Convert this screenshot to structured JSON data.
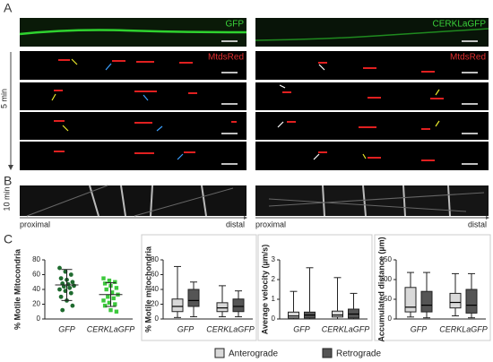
{
  "panels": {
    "A": {
      "label": "A",
      "left_channel": "GFP",
      "right_channel": "CERKLaGFP",
      "left_red": "MtdsRed",
      "right_red": "MtdsRed",
      "time": "5 min"
    },
    "B": {
      "label": "B",
      "time": "10 min",
      "left_start": "proximal",
      "left_end": "distal",
      "right_start": "proximal",
      "right_end": "distal"
    },
    "C": {
      "label": "C"
    }
  },
  "chart_data": [
    {
      "type": "scatter",
      "ylabel": "% Motile Mitocondria",
      "categories": [
        "GFP",
        "CERKLaGFP"
      ],
      "series": [
        {
          "color": "#1f6b2f",
          "marker": "circle",
          "values": [
            69,
            64,
            60,
            55,
            53,
            50,
            48,
            47,
            45,
            44,
            42,
            40,
            38,
            35,
            30,
            25,
            18,
            12
          ],
          "mean": 46,
          "sd": 21
        },
        {
          "color": "#3cc83c",
          "marker": "square",
          "values": [
            55,
            52,
            50,
            48,
            45,
            42,
            40,
            36,
            33,
            30,
            28,
            25,
            22,
            20,
            18,
            12,
            10
          ],
          "mean": 33,
          "sd": 16
        }
      ],
      "ylim": [
        0,
        80
      ],
      "yticks": [
        0,
        20,
        40,
        60,
        80
      ]
    },
    {
      "type": "box",
      "ylabel": "% Motile mitochondria",
      "categories": [
        "GFP",
        "CERKLaGFP"
      ],
      "series": [
        {
          "name": "Anterograde",
          "color": "#d9d9d9",
          "values": [
            {
              "min": 2,
              "q1": 10,
              "median": 17,
              "q3": 27,
              "max": 71
            },
            {
              "min": 3,
              "q1": 10,
              "median": 15,
              "q3": 22,
              "max": 45
            }
          ]
        },
        {
          "name": "Retrograde",
          "color": "#555555",
          "values": [
            {
              "min": 3,
              "q1": 17,
              "median": 25,
              "q3": 40,
              "max": 50
            },
            {
              "min": 3,
              "q1": 10,
              "median": 17,
              "q3": 27,
              "max": 38
            }
          ]
        }
      ],
      "ylim": [
        0,
        80
      ],
      "yticks": [
        0,
        20,
        40,
        60,
        80
      ]
    },
    {
      "type": "box",
      "ylabel": "Average velocity (µm/s)",
      "categories": [
        "GFP",
        "CERKLaGFP"
      ],
      "series": [
        {
          "color": "#d9d9d9",
          "values": [
            {
              "min": 0,
              "q1": 0.05,
              "median": 0.15,
              "q3": 0.35,
              "max": 1.4
            },
            {
              "min": 0,
              "q1": 0.1,
              "median": 0.2,
              "q3": 0.4,
              "max": 2.1
            }
          ]
        },
        {
          "color": "#555555",
          "values": [
            {
              "min": 0,
              "q1": 0.05,
              "median": 0.2,
              "q3": 0.35,
              "max": 2.6
            },
            {
              "min": 0,
              "q1": 0.05,
              "median": 0.25,
              "q3": 0.5,
              "max": 1.3
            }
          ]
        }
      ],
      "ylim": [
        0,
        3
      ],
      "yticks": [
        0,
        1,
        2,
        3
      ]
    },
    {
      "type": "box",
      "ylabel": "Accumulated distance (µm)",
      "categories": [
        "GFP",
        "CERKLaGFP"
      ],
      "series": [
        {
          "color": "#d9d9d9",
          "values": [
            {
              "min": 5,
              "q1": 18,
              "median": 30,
              "q3": 80,
              "max": 118
            },
            {
              "min": 8,
              "q1": 28,
              "median": 42,
              "q3": 65,
              "max": 115
            }
          ]
        },
        {
          "color": "#555555",
          "values": [
            {
              "min": 3,
              "q1": 18,
              "median": 35,
              "q3": 70,
              "max": 118
            },
            {
              "min": 3,
              "q1": 15,
              "median": 35,
              "q3": 75,
              "max": 115
            }
          ]
        }
      ],
      "ylim": [
        0,
        150
      ],
      "yticks": [
        0,
        50,
        100,
        150
      ]
    }
  ]
}
